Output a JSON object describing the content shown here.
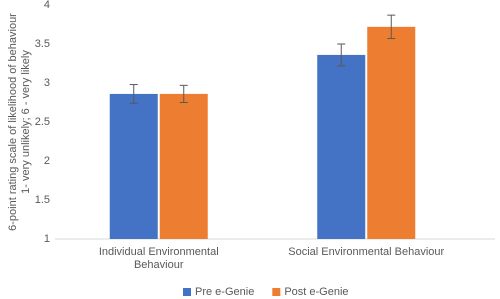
{
  "chart_data": {
    "type": "bar",
    "y_label": [
      "6-point rating scale of likelihood of behaviour",
      "1- very unlikely; 6 - very likely"
    ],
    "categories": [
      "Individual Environmental Behaviour",
      "Social Environmental Behaviour"
    ],
    "series": [
      {
        "name": "Pre e-Genie",
        "color": "#4472c4",
        "values": [
          2.86,
          3.36
        ],
        "errors": [
          0.12,
          0.14
        ]
      },
      {
        "name": "Post e-Genie",
        "color": "#ed7d31",
        "values": [
          2.86,
          3.72
        ],
        "errors": [
          0.11,
          0.15
        ]
      }
    ],
    "ylim": [
      1,
      4
    ],
    "yticks": [
      1,
      1.5,
      2,
      2.5,
      3,
      3.5,
      4
    ],
    "grid": false,
    "legend": "bottom"
  }
}
